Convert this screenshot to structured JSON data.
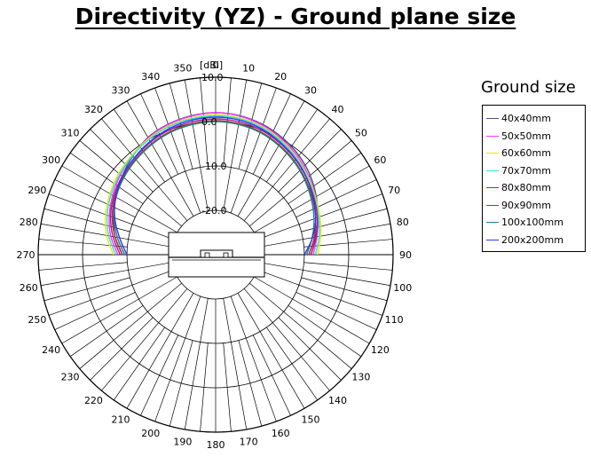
{
  "chart_data": {
    "type": "polar-line",
    "title": "Directivity (YZ) - Ground plane size",
    "radial_unit": "[dBi]",
    "radial_range": [
      -30,
      10
    ],
    "ring_labels": [
      "10.0",
      "0.0",
      "-10.0",
      "-20.0"
    ],
    "ring_values": [
      10,
      0,
      -10,
      -20
    ],
    "angle_ticks": [
      "0",
      "10",
      "20",
      "30",
      "40",
      "50",
      "60",
      "70",
      "80",
      "90",
      "100",
      "110",
      "120",
      "130",
      "140",
      "150",
      "160",
      "170",
      "180",
      "190",
      "200",
      "210",
      "220",
      "230",
      "240",
      "250",
      "260",
      "270",
      "280",
      "290",
      "300",
      "310",
      "320",
      "330",
      "340",
      "350"
    ],
    "angle_direction": "clockwise",
    "zero_angle": "top",
    "grid": true,
    "legend": {
      "title": "Ground size",
      "placement": "right"
    },
    "angles": [
      270,
      280,
      290,
      300,
      310,
      320,
      330,
      340,
      350,
      0,
      10,
      20,
      30,
      40,
      50,
      60,
      70,
      80,
      90
    ],
    "series": [
      {
        "name": "40x40mm",
        "color": "#4b4b8c",
        "values": [
          -9.0,
          -7.0,
          -5.5,
          -4.0,
          -2.5,
          -1.0,
          0.5,
          1.3,
          1.8,
          2.0,
          1.8,
          1.2,
          0.3,
          -0.8,
          -2.2,
          -3.8,
          -5.5,
          -7.2,
          -9.0
        ]
      },
      {
        "name": "50x50mm",
        "color": "#ff33ff",
        "values": [
          -8.0,
          -6.0,
          -4.5,
          -3.2,
          -2.0,
          -0.8,
          0.4,
          1.2,
          1.7,
          2.0,
          1.7,
          1.0,
          0.0,
          -1.2,
          -2.6,
          -4.0,
          -5.5,
          -6.8,
          -8.0
        ]
      },
      {
        "name": "60x60mm",
        "color": "#e8e800",
        "values": [
          -7.0,
          -5.0,
          -3.6,
          -2.5,
          -1.5,
          -0.7,
          0.2,
          0.9,
          1.3,
          1.5,
          1.3,
          0.7,
          -0.3,
          -1.5,
          -2.8,
          -4.0,
          -5.0,
          -6.0,
          -7.0
        ]
      },
      {
        "name": "70x70mm",
        "color": "#33e0e0",
        "values": [
          -7.5,
          -5.5,
          -4.0,
          -2.8,
          -1.8,
          -0.9,
          0.0,
          0.7,
          1.1,
          1.3,
          1.1,
          0.5,
          -0.5,
          -1.7,
          -3.0,
          -4.2,
          -5.3,
          -6.3,
          -7.5
        ]
      },
      {
        "name": "80x80mm",
        "color": "#a0208c",
        "values": [
          -8.5,
          -6.5,
          -4.8,
          -3.5,
          -2.5,
          -1.6,
          -0.7,
          0.0,
          0.4,
          0.6,
          0.4,
          -0.1,
          -1.0,
          -2.0,
          -3.2,
          -4.4,
          -5.6,
          -7.0,
          -8.5
        ]
      },
      {
        "name": "90x90mm",
        "color": "#b03030",
        "values": [
          -9.0,
          -7.0,
          -5.2,
          -3.8,
          -2.8,
          -1.9,
          -1.1,
          -0.4,
          0.0,
          0.2,
          0.0,
          -0.5,
          -1.4,
          -2.4,
          -3.6,
          -4.8,
          -6.0,
          -7.4,
          -9.0
        ]
      },
      {
        "name": "100x100mm",
        "color": "#208080",
        "values": [
          -9.5,
          -7.5,
          -5.6,
          -4.1,
          -3.0,
          -2.1,
          -1.3,
          -0.6,
          -0.2,
          0.0,
          -0.2,
          -0.7,
          -1.6,
          -2.6,
          -3.8,
          -5.1,
          -6.4,
          -7.9,
          -9.5
        ]
      },
      {
        "name": "200x200mm",
        "color": "#3333ff",
        "values": [
          -10.0,
          -8.0,
          -5.8,
          -4.0,
          -2.6,
          -1.5,
          -0.5,
          0.3,
          0.8,
          1.0,
          0.8,
          0.2,
          -0.8,
          -1.9,
          -3.2,
          -4.6,
          -6.0,
          -7.8,
          -10.0
        ]
      }
    ]
  }
}
